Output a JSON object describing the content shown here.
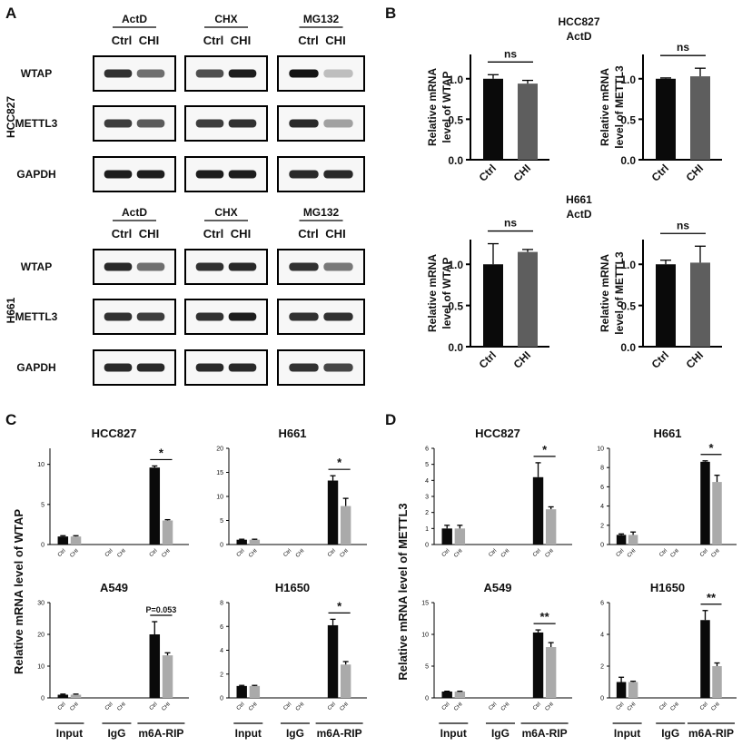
{
  "panels": {
    "A": "A",
    "B": "B",
    "C": "C",
    "D": "D"
  },
  "colors": {
    "ctrl": "#0a0a0a",
    "chi_b": "#5e5e5e",
    "chi_cd": "#aaaaaa",
    "blot_bg": "#f7f7f7",
    "band": "#141414"
  },
  "panel_a": {
    "blocks": [
      {
        "cell_line": "HCC827",
        "treatments": [
          "ActD",
          "CHX",
          "MG132"
        ],
        "lane_labels": [
          "Ctrl",
          "CHI"
        ],
        "rows": [
          {
            "protein": "WTAP",
            "lanes": [
              [
                0.85,
                0.55
              ],
              [
                0.7,
                0.95
              ],
              [
                1.0,
                0.15
              ]
            ]
          },
          {
            "protein": "METTL3",
            "lanes": [
              [
                0.8,
                0.65
              ],
              [
                0.8,
                0.85
              ],
              [
                0.9,
                0.3
              ]
            ]
          },
          {
            "protein": "GAPDH",
            "lanes": [
              [
                0.95,
                0.95
              ],
              [
                0.95,
                0.95
              ],
              [
                0.9,
                0.9
              ]
            ]
          }
        ]
      },
      {
        "cell_line": "H661",
        "treatments": [
          "ActD",
          "CHX",
          "MG132"
        ],
        "lane_labels": [
          "Ctrl",
          "CHI"
        ],
        "rows": [
          {
            "protein": "WTAP",
            "lanes": [
              [
                0.9,
                0.55
              ],
              [
                0.85,
                0.9
              ],
              [
                0.85,
                0.5
              ]
            ]
          },
          {
            "protein": "METTL3",
            "lanes": [
              [
                0.85,
                0.8
              ],
              [
                0.85,
                0.95
              ],
              [
                0.85,
                0.85
              ]
            ]
          },
          {
            "protein": "GAPDH",
            "lanes": [
              [
                0.9,
                0.9
              ],
              [
                0.9,
                0.9
              ],
              [
                0.85,
                0.75
              ]
            ]
          }
        ]
      }
    ]
  },
  "chart_data": [
    {
      "panel": "B",
      "type": "bar",
      "title": "HCC827",
      "subtitle": "ActD",
      "ylabel": "Relative mRNA level of WTAP",
      "categories": [
        "Ctrl",
        "CHI"
      ],
      "values": [
        1.0,
        0.94
      ],
      "errors": [
        0.05,
        0.04
      ],
      "ylim": [
        0,
        1.3
      ],
      "yticks": [
        "0.0",
        "0.5",
        "1.0"
      ],
      "significance": "ns"
    },
    {
      "panel": "B",
      "type": "bar",
      "title": "",
      "subtitle": "",
      "ylabel": "Relative mRNA level of METTL3",
      "categories": [
        "Ctrl",
        "CHI"
      ],
      "values": [
        1.0,
        1.03
      ],
      "errors": [
        0.01,
        0.1
      ],
      "ylim": [
        0,
        1.3
      ],
      "yticks": [
        "0.0",
        "0.5",
        "1.0"
      ],
      "significance": "ns"
    },
    {
      "panel": "B",
      "type": "bar",
      "title": "H661",
      "subtitle": "ActD",
      "ylabel": "Relative mRNA level of WTAP",
      "categories": [
        "Ctrl",
        "CHI"
      ],
      "values": [
        1.0,
        1.15
      ],
      "errors": [
        0.25,
        0.03
      ],
      "ylim": [
        0,
        1.3
      ],
      "yticks": [
        "0.0",
        "0.5",
        "1.0"
      ],
      "significance": "ns"
    },
    {
      "panel": "B",
      "type": "bar",
      "title": "",
      "subtitle": "",
      "ylabel": "Relative mRNA level of METTL3",
      "categories": [
        "Ctrl",
        "CHI"
      ],
      "values": [
        1.0,
        1.02
      ],
      "errors": [
        0.05,
        0.2
      ],
      "ylim": [
        0,
        1.3
      ],
      "yticks": [
        "0.0",
        "0.5",
        "1.0"
      ],
      "significance": "ns"
    },
    {
      "panel": "C",
      "type": "bar",
      "title": "HCC827",
      "ylabel": "Relative mRNA level of WTAP",
      "groups": [
        "Input",
        "IgG",
        "m6A-RIP"
      ],
      "bar_labels": [
        "Ctrl",
        "CHI"
      ],
      "series": [
        {
          "name": "Ctrl",
          "values": [
            1.0,
            0,
            9.6
          ],
          "errors": [
            0.1,
            0,
            0.2
          ]
        },
        {
          "name": "CHI",
          "values": [
            1.0,
            0,
            3.0
          ],
          "errors": [
            0.1,
            0,
            0.1
          ]
        }
      ],
      "ylim": [
        0,
        12
      ],
      "yticks": [
        "0",
        "5",
        "10"
      ],
      "significance": "*"
    },
    {
      "panel": "C",
      "type": "bar",
      "title": "H661",
      "ylabel": "",
      "groups": [
        "Input",
        "IgG",
        "m6A-RIP"
      ],
      "bar_labels": [
        "Ctrl",
        "CHI"
      ],
      "series": [
        {
          "name": "Ctrl",
          "values": [
            1.0,
            0,
            13.3
          ],
          "errors": [
            0.1,
            0,
            1.0
          ]
        },
        {
          "name": "CHI",
          "values": [
            1.0,
            0,
            8.0
          ],
          "errors": [
            0.1,
            0,
            1.6
          ]
        }
      ],
      "ylim": [
        0,
        20
      ],
      "yticks": [
        "0",
        "5",
        "10",
        "15",
        "20"
      ],
      "significance": "*"
    },
    {
      "panel": "C",
      "type": "bar",
      "title": "A549",
      "ylabel": "",
      "groups": [
        "Input",
        "IgG",
        "m6A-RIP"
      ],
      "bar_labels": [
        "Ctrl",
        "CHI"
      ],
      "series": [
        {
          "name": "Ctrl",
          "values": [
            1.0,
            0,
            20.0
          ],
          "errors": [
            0.2,
            0,
            4.0
          ]
        },
        {
          "name": "CHI",
          "values": [
            1.0,
            0,
            13.4
          ],
          "errors": [
            0.2,
            0,
            0.8
          ]
        }
      ],
      "ylim": [
        0,
        30
      ],
      "yticks": [
        "0",
        "10",
        "20",
        "30"
      ],
      "significance": "P=0.053"
    },
    {
      "panel": "C",
      "type": "bar",
      "title": "H1650",
      "ylabel": "",
      "groups": [
        "Input",
        "IgG",
        "m6A-RIP"
      ],
      "bar_labels": [
        "Ctrl",
        "CHI"
      ],
      "series": [
        {
          "name": "Ctrl",
          "values": [
            1.0,
            0,
            6.1
          ],
          "errors": [
            0.05,
            0,
            0.5
          ]
        },
        {
          "name": "CHI",
          "values": [
            1.0,
            0,
            2.8
          ],
          "errors": [
            0.05,
            0,
            0.25
          ]
        }
      ],
      "ylim": [
        0,
        8
      ],
      "yticks": [
        "0",
        "2",
        "4",
        "6",
        "8"
      ],
      "significance": "*"
    },
    {
      "panel": "D",
      "type": "bar",
      "title": "HCC827",
      "ylabel": "Relative mRNA level of METTL3",
      "groups": [
        "Input",
        "IgG",
        "m6A-RIP"
      ],
      "bar_labels": [
        "Ctrl",
        "CHI"
      ],
      "series": [
        {
          "name": "Ctrl",
          "values": [
            1.0,
            0,
            4.2
          ],
          "errors": [
            0.2,
            0,
            0.9
          ]
        },
        {
          "name": "CHI",
          "values": [
            1.0,
            0,
            2.2
          ],
          "errors": [
            0.2,
            0,
            0.15
          ]
        }
      ],
      "ylim": [
        0,
        6
      ],
      "yticks": [
        "0",
        "1",
        "2",
        "3",
        "4",
        "5",
        "6"
      ],
      "significance": "*"
    },
    {
      "panel": "D",
      "type": "bar",
      "title": "H661",
      "ylabel": "",
      "groups": [
        "Input",
        "IgG",
        "m6A-RIP"
      ],
      "bar_labels": [
        "Ctrl",
        "CHI"
      ],
      "series": [
        {
          "name": "Ctrl",
          "values": [
            1.0,
            0,
            8.6
          ],
          "errors": [
            0.1,
            0,
            0.1
          ]
        },
        {
          "name": "CHI",
          "values": [
            1.0,
            0,
            6.5
          ],
          "errors": [
            0.3,
            0,
            0.7
          ]
        }
      ],
      "ylim": [
        0,
        10
      ],
      "yticks": [
        "0",
        "2",
        "4",
        "6",
        "8",
        "10"
      ],
      "significance": "*"
    },
    {
      "panel": "D",
      "type": "bar",
      "title": "A549",
      "ylabel": "",
      "groups": [
        "Input",
        "IgG",
        "m6A-RIP"
      ],
      "bar_labels": [
        "Ctrl",
        "CHI"
      ],
      "series": [
        {
          "name": "Ctrl",
          "values": [
            1.0,
            0,
            10.3
          ],
          "errors": [
            0.05,
            0,
            0.4
          ]
        },
        {
          "name": "CHI",
          "values": [
            1.0,
            0,
            8.0
          ],
          "errors": [
            0.05,
            0,
            0.7
          ]
        }
      ],
      "ylim": [
        0,
        15
      ],
      "yticks": [
        "0",
        "5",
        "10",
        "15"
      ],
      "significance": "**"
    },
    {
      "panel": "D",
      "type": "bar",
      "title": "H1650",
      "ylabel": "",
      "groups": [
        "Input",
        "IgG",
        "m6A-RIP"
      ],
      "bar_labels": [
        "Ctrl",
        "CHI"
      ],
      "series": [
        {
          "name": "Ctrl",
          "values": [
            1.0,
            0,
            4.9
          ],
          "errors": [
            0.3,
            0,
            0.6
          ]
        },
        {
          "name": "CHI",
          "values": [
            1.0,
            0,
            2.0
          ],
          "errors": [
            0.05,
            0,
            0.2
          ]
        }
      ],
      "ylim": [
        0,
        6
      ],
      "yticks": [
        "0",
        "2",
        "4",
        "6"
      ],
      "significance": "**"
    }
  ]
}
